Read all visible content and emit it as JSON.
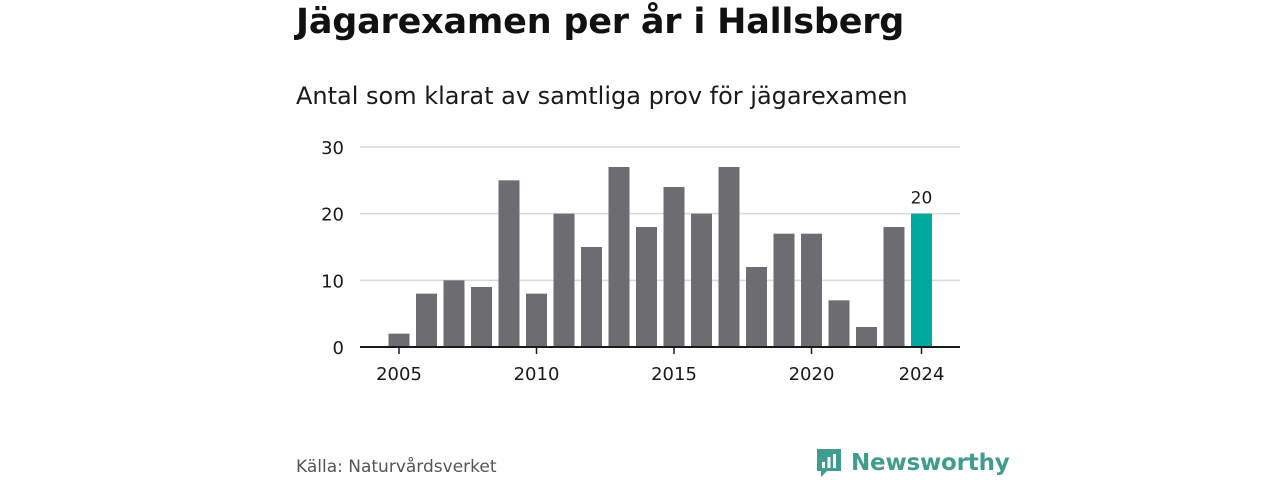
{
  "title": "Jägarexamen per år i Hallsberg",
  "subtitle": "Antal som klarat av samtliga prov för jägarexamen",
  "source": "Källa: Naturvårdsverket",
  "brand": {
    "name": "Newsworthy",
    "icon": "newsworthy-logo-icon",
    "color": "#3f9c8f"
  },
  "colors": {
    "bar": "#6d6c71",
    "highlight": "#00a99d",
    "grid": "#d9d9d9",
    "axis": "#1a1a1a"
  },
  "chart_data": {
    "type": "bar",
    "x": [
      2005,
      2006,
      2007,
      2008,
      2009,
      2010,
      2011,
      2012,
      2013,
      2014,
      2015,
      2016,
      2017,
      2018,
      2019,
      2020,
      2021,
      2022,
      2023,
      2024
    ],
    "values": [
      2,
      8,
      10,
      9,
      25,
      8,
      20,
      15,
      27,
      18,
      24,
      20,
      27,
      12,
      17,
      17,
      7,
      3,
      18,
      20
    ],
    "x_ticks": [
      "2005",
      "2010",
      "2015",
      "2020",
      "2024"
    ],
    "y_ticks": [
      0,
      10,
      20,
      30
    ],
    "ylim": [
      0,
      30
    ],
    "highlight": {
      "x": 2024,
      "label": "20"
    },
    "xlabel": "",
    "ylabel": "",
    "grid": true
  }
}
